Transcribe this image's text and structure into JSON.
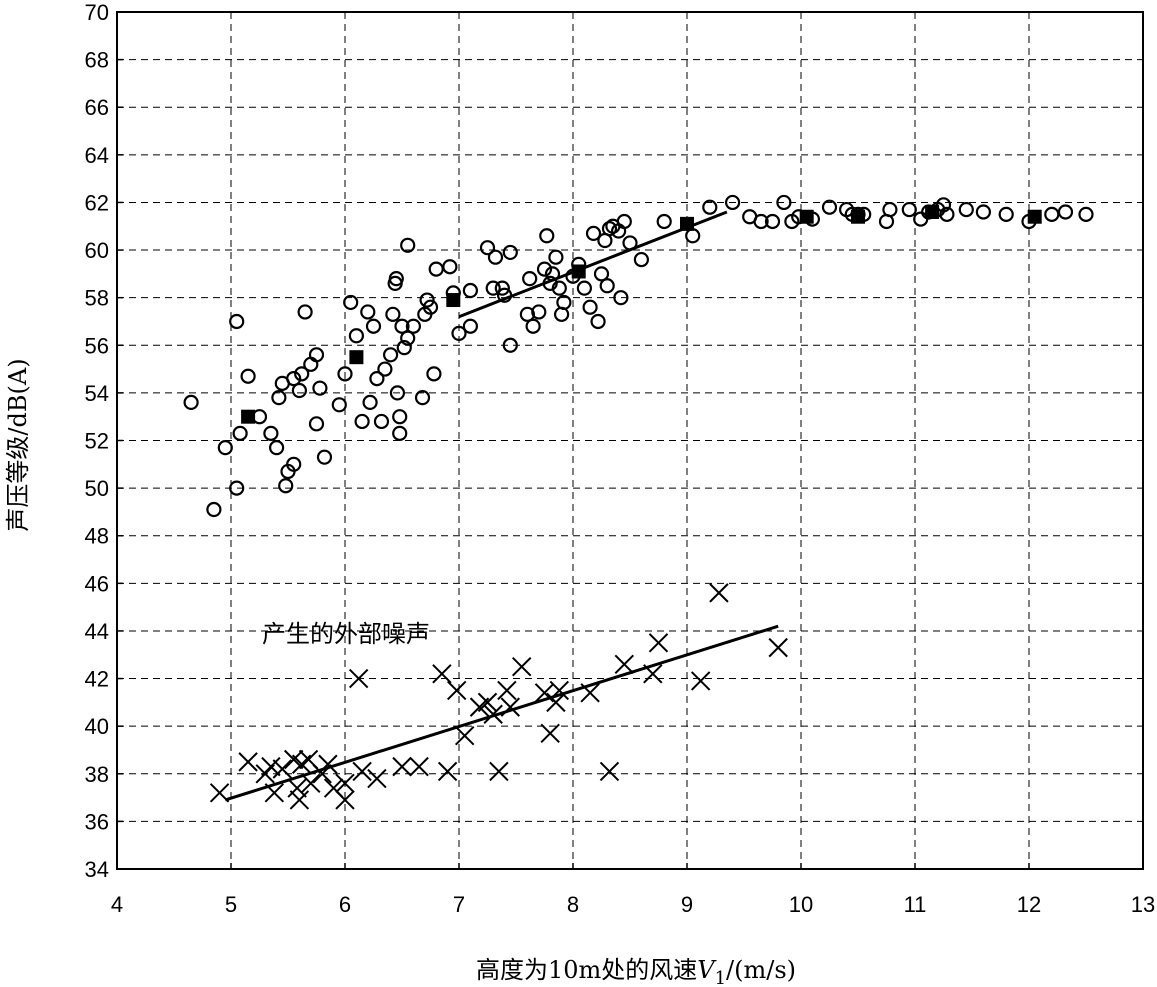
{
  "chart_data": {
    "type": "scatter",
    "xlabel_main": "高度为10m处的风速",
    "xlabel_var": "V",
    "xlabel_sub": "1",
    "xlabel_unit": "/(m/s)",
    "ylabel": "声压等级/dB(A)",
    "xlim": [
      4,
      13
    ],
    "ylim": [
      34,
      70
    ],
    "x_ticks": [
      4,
      5,
      6,
      7,
      8,
      9,
      10,
      11,
      12,
      13
    ],
    "y_ticks": [
      34,
      36,
      38,
      40,
      42,
      44,
      46,
      48,
      50,
      52,
      54,
      56,
      58,
      60,
      62,
      64,
      66,
      68,
      70
    ],
    "grid": true,
    "annotation": "产生的外部噪声",
    "colors": {
      "marker": "#000000",
      "grid": "#000000"
    },
    "series": [
      {
        "marker": "circle",
        "points": [
          [
            4.65,
            53.6
          ],
          [
            4.85,
            49.1
          ],
          [
            4.95,
            51.7
          ],
          [
            5.05,
            57.0
          ],
          [
            5.05,
            50.0
          ],
          [
            5.08,
            52.3
          ],
          [
            5.15,
            54.7
          ],
          [
            5.25,
            53.0
          ],
          [
            5.35,
            52.3
          ],
          [
            5.4,
            51.7
          ],
          [
            5.42,
            53.8
          ],
          [
            5.45,
            54.4
          ],
          [
            5.48,
            50.1
          ],
          [
            5.5,
            50.7
          ],
          [
            5.55,
            51.0
          ],
          [
            5.55,
            54.6
          ],
          [
            5.6,
            54.1
          ],
          [
            5.62,
            54.8
          ],
          [
            5.65,
            57.4
          ],
          [
            5.7,
            55.2
          ],
          [
            5.75,
            52.7
          ],
          [
            5.75,
            55.6
          ],
          [
            5.78,
            54.2
          ],
          [
            5.82,
            51.3
          ],
          [
            5.95,
            53.5
          ],
          [
            6.0,
            54.8
          ],
          [
            6.05,
            57.8
          ],
          [
            6.1,
            56.4
          ],
          [
            6.15,
            52.8
          ],
          [
            6.2,
            57.4
          ],
          [
            6.22,
            53.6
          ],
          [
            6.25,
            56.8
          ],
          [
            6.28,
            54.6
          ],
          [
            6.32,
            52.8
          ],
          [
            6.35,
            55.0
          ],
          [
            6.4,
            55.6
          ],
          [
            6.42,
            57.3
          ],
          [
            6.44,
            58.6
          ],
          [
            6.45,
            58.8
          ],
          [
            6.46,
            54.0
          ],
          [
            6.48,
            52.3
          ],
          [
            6.48,
            53.0
          ],
          [
            6.5,
            56.8
          ],
          [
            6.52,
            55.9
          ],
          [
            6.55,
            56.3
          ],
          [
            6.55,
            60.2
          ],
          [
            6.6,
            56.8
          ],
          [
            6.68,
            53.8
          ],
          [
            6.7,
            57.3
          ],
          [
            6.72,
            57.9
          ],
          [
            6.75,
            57.6
          ],
          [
            6.78,
            54.8
          ],
          [
            6.8,
            59.2
          ],
          [
            6.92,
            59.3
          ],
          [
            6.95,
            58.2
          ],
          [
            7.0,
            56.5
          ],
          [
            7.1,
            56.8
          ],
          [
            7.1,
            58.3
          ],
          [
            7.25,
            60.1
          ],
          [
            7.3,
            58.4
          ],
          [
            7.32,
            59.7
          ],
          [
            7.38,
            58.4
          ],
          [
            7.4,
            58.1
          ],
          [
            7.45,
            59.9
          ],
          [
            7.45,
            56.0
          ],
          [
            7.6,
            57.3
          ],
          [
            7.62,
            58.8
          ],
          [
            7.65,
            56.8
          ],
          [
            7.7,
            57.4
          ],
          [
            7.75,
            59.2
          ],
          [
            7.77,
            60.6
          ],
          [
            7.8,
            58.6
          ],
          [
            7.82,
            59.0
          ],
          [
            7.85,
            59.7
          ],
          [
            7.88,
            58.4
          ],
          [
            7.9,
            57.3
          ],
          [
            7.92,
            57.8
          ],
          [
            8.0,
            58.9
          ],
          [
            8.05,
            59.4
          ],
          [
            8.1,
            58.4
          ],
          [
            8.15,
            57.6
          ],
          [
            8.18,
            60.7
          ],
          [
            8.22,
            57.0
          ],
          [
            8.25,
            59.0
          ],
          [
            8.28,
            60.4
          ],
          [
            8.3,
            58.5
          ],
          [
            8.32,
            60.9
          ],
          [
            8.35,
            61.0
          ],
          [
            8.4,
            60.8
          ],
          [
            8.42,
            58.0
          ],
          [
            8.45,
            61.2
          ],
          [
            8.5,
            60.3
          ],
          [
            8.6,
            59.6
          ],
          [
            8.8,
            61.2
          ],
          [
            9.05,
            60.6
          ],
          [
            9.2,
            61.8
          ],
          [
            9.4,
            62.0
          ],
          [
            9.55,
            61.4
          ],
          [
            9.65,
            61.2
          ],
          [
            9.75,
            61.2
          ],
          [
            9.85,
            62.0
          ],
          [
            9.92,
            61.2
          ],
          [
            9.98,
            61.4
          ],
          [
            10.1,
            61.3
          ],
          [
            10.25,
            61.8
          ],
          [
            10.4,
            61.7
          ],
          [
            10.45,
            61.5
          ],
          [
            10.5,
            61.5
          ],
          [
            10.55,
            61.5
          ],
          [
            10.75,
            61.2
          ],
          [
            10.78,
            61.7
          ],
          [
            10.95,
            61.7
          ],
          [
            11.05,
            61.3
          ],
          [
            11.12,
            61.6
          ],
          [
            11.2,
            61.7
          ],
          [
            11.25,
            61.9
          ],
          [
            11.28,
            61.5
          ],
          [
            11.45,
            61.7
          ],
          [
            11.6,
            61.6
          ],
          [
            11.8,
            61.5
          ],
          [
            12.0,
            61.2
          ],
          [
            12.2,
            61.5
          ],
          [
            12.32,
            61.6
          ],
          [
            12.5,
            61.5
          ]
        ]
      },
      {
        "marker": "square",
        "points": [
          [
            5.15,
            53.0
          ],
          [
            6.1,
            55.5
          ],
          [
            6.95,
            57.9
          ],
          [
            8.05,
            59.1
          ],
          [
            9.0,
            61.1
          ],
          [
            10.05,
            61.4
          ],
          [
            10.5,
            61.4
          ],
          [
            11.15,
            61.6
          ],
          [
            12.05,
            61.4
          ]
        ]
      },
      {
        "marker": "cross",
        "points": [
          [
            4.9,
            37.2
          ],
          [
            5.15,
            38.5
          ],
          [
            5.3,
            38.0
          ],
          [
            5.35,
            38.3
          ],
          [
            5.38,
            37.2
          ],
          [
            5.45,
            38.2
          ],
          [
            5.55,
            38.6
          ],
          [
            5.58,
            37.4
          ],
          [
            5.6,
            36.9
          ],
          [
            5.62,
            38.4
          ],
          [
            5.68,
            38.6
          ],
          [
            5.7,
            37.6
          ],
          [
            5.8,
            38.0
          ],
          [
            5.85,
            38.4
          ],
          [
            5.9,
            37.4
          ],
          [
            6.0,
            37.6
          ],
          [
            6.0,
            36.9
          ],
          [
            6.12,
            42.0
          ],
          [
            6.15,
            38.1
          ],
          [
            6.28,
            37.8
          ],
          [
            6.5,
            38.3
          ],
          [
            6.65,
            38.3
          ],
          [
            6.85,
            42.2
          ],
          [
            6.9,
            38.1
          ],
          [
            6.98,
            41.5
          ],
          [
            7.05,
            39.6
          ],
          [
            7.18,
            40.8
          ],
          [
            7.25,
            41.0
          ],
          [
            7.3,
            40.5
          ],
          [
            7.35,
            38.1
          ],
          [
            7.42,
            41.5
          ],
          [
            7.45,
            40.8
          ],
          [
            7.55,
            42.5
          ],
          [
            7.75,
            41.4
          ],
          [
            7.8,
            39.7
          ],
          [
            7.85,
            41.0
          ],
          [
            7.88,
            41.5
          ],
          [
            8.15,
            41.4
          ],
          [
            8.32,
            38.1
          ],
          [
            8.45,
            42.6
          ],
          [
            8.7,
            42.2
          ],
          [
            8.75,
            43.5
          ],
          [
            9.12,
            41.9
          ],
          [
            9.28,
            45.6
          ],
          [
            9.8,
            43.3
          ]
        ]
      }
    ],
    "trend_lines": [
      {
        "from": [
          7.0,
          57.2
        ],
        "to": [
          9.35,
          61.6
        ]
      },
      {
        "from": [
          4.95,
          36.9
        ],
        "to": [
          9.8,
          44.2
        ]
      }
    ]
  }
}
